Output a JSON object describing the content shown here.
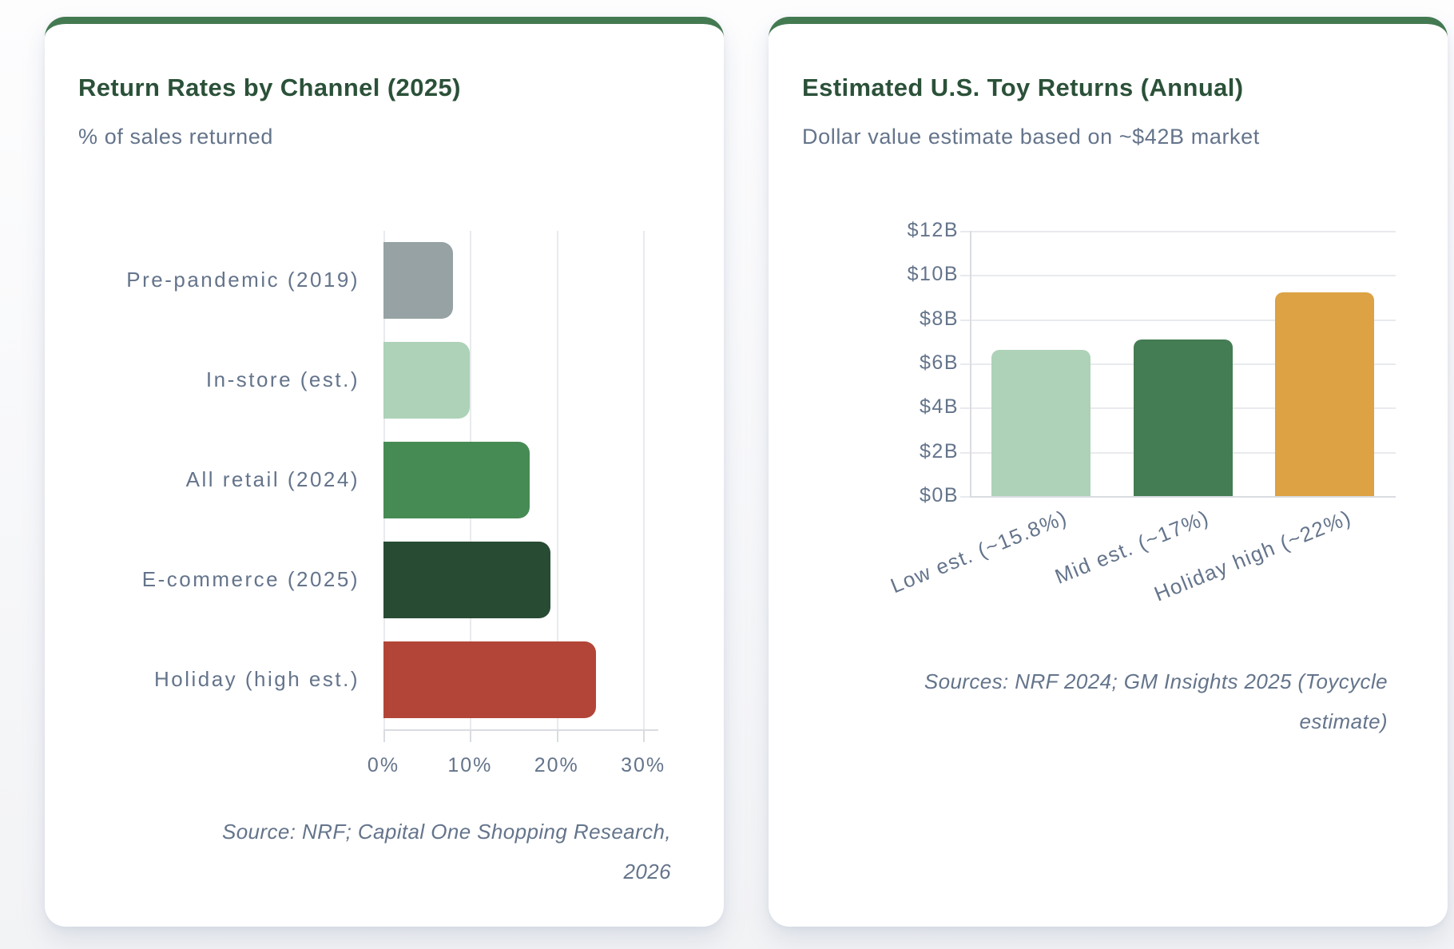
{
  "colors": {
    "accent_green": "#447a52",
    "title_green": "#2b5139",
    "muted_text": "#64748b",
    "grid": "#e8eaed",
    "axis": "#d9dce0",
    "card_bg": "#ffffff"
  },
  "chart_data": [
    {
      "type": "bar",
      "orientation": "horizontal",
      "title": "Return Rates by Channel (2025)",
      "subtitle": "% of sales returned",
      "categories": [
        "Pre-pandemic (2019)",
        "In-store (est.)",
        "All retail (2024)",
        "E-commerce (2025)",
        "Holiday (high est.)"
      ],
      "values": [
        8,
        10,
        16.9,
        19.3,
        24.5
      ],
      "bar_colors": [
        "#96a2a3",
        "#add2b8",
        "#478b54",
        "#284b33",
        "#b34538"
      ],
      "x_ticks": [
        "0%",
        "10%",
        "20%",
        "30%"
      ],
      "x_tick_values": [
        0,
        10,
        20,
        30
      ],
      "xlim": [
        0,
        31
      ],
      "grid": true,
      "legend": "none",
      "source_lines": [
        "Source: NRF; Capital One Shopping Research,",
        "2026"
      ]
    },
    {
      "type": "bar",
      "orientation": "vertical",
      "title": "Estimated U.S. Toy Returns (Annual)",
      "subtitle": "Dollar value estimate based on ~$42B market",
      "categories": [
        "Low est. (~15.8%)",
        "Mid est. (~17%)",
        "Holiday high (~22%)"
      ],
      "values": [
        6.6,
        7.1,
        9.2
      ],
      "bar_colors": [
        "#add2b8",
        "#447c53",
        "#dca244"
      ],
      "y_ticks": [
        "$0B",
        "$2B",
        "$4B",
        "$6B",
        "$8B",
        "$10B",
        "$12B"
      ],
      "y_tick_values": [
        0,
        2,
        4,
        6,
        8,
        10,
        12
      ],
      "ylim": [
        0,
        12
      ],
      "grid": true,
      "legend": "none",
      "source_lines": [
        "Sources: NRF 2024; GM Insights 2025 (Toycycle",
        "estimate)"
      ]
    }
  ]
}
